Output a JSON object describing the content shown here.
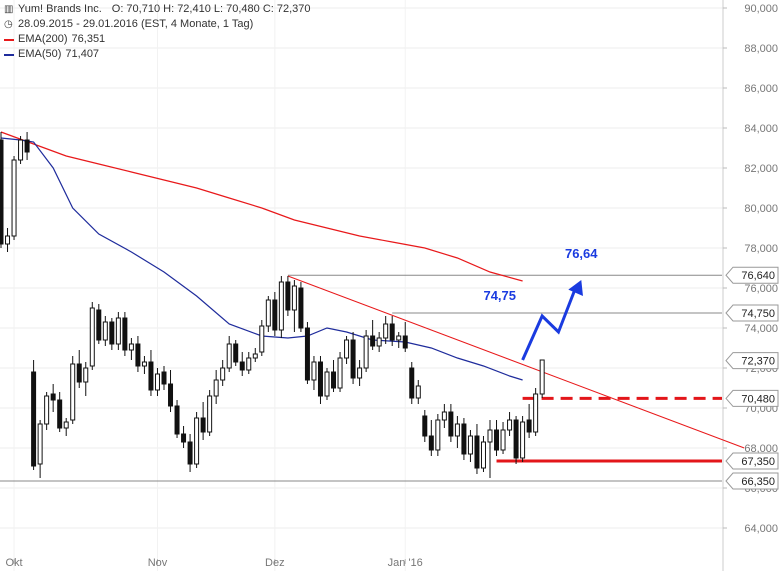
{
  "header": {
    "title": "Yum! Brands Inc.",
    "ohlc": "O: 70,710  H: 72,410  L: 70,480  C: 72,370",
    "period": "28.09.2015 - 29.01.2016 (EST, 4 Monate, 1 Tag)",
    "legend": [
      {
        "name": "EMA(200)",
        "value": "76,351",
        "color": "#e8191b"
      },
      {
        "name": "EMA(50)",
        "value": "71,407",
        "color": "#1f2c9c"
      }
    ]
  },
  "chart_data": {
    "type": "candlestick",
    "ylim": [
      63.2,
      90.0
    ],
    "y_ticks": [
      "90,000",
      "88,000",
      "86,000",
      "84,000",
      "82,000",
      "80,000",
      "78,000",
      "76,000",
      "74,000",
      "72,000",
      "70,000",
      "68,000",
      "66,000",
      "64,000"
    ],
    "y_tick_values": [
      90,
      88,
      86,
      84,
      82,
      80,
      78,
      76,
      74,
      72,
      70,
      68,
      66,
      64
    ],
    "x_ticks": [
      "Okt",
      "Nov",
      "Dez",
      "Jan '16"
    ],
    "x_tick_index": [
      2,
      24,
      42,
      62
    ],
    "n_bars": 86,
    "candles": [
      [
        83.4,
        83.8,
        78.0,
        78.2
      ],
      [
        78.2,
        79.0,
        77.8,
        78.6
      ],
      [
        78.6,
        82.6,
        78.4,
        82.4
      ],
      [
        82.4,
        83.6,
        82.2,
        83.4
      ],
      [
        83.4,
        83.8,
        82.4,
        82.8
      ],
      [
        71.8,
        72.4,
        66.9,
        67.1
      ],
      [
        67.2,
        69.4,
        66.5,
        69.2
      ],
      [
        69.2,
        70.8,
        68.9,
        70.6
      ],
      [
        70.7,
        71.2,
        69.8,
        70.4
      ],
      [
        70.4,
        70.8,
        68.8,
        69.0
      ],
      [
        69.0,
        69.5,
        68.6,
        69.3
      ],
      [
        69.4,
        72.6,
        69.2,
        72.2
      ],
      [
        72.2,
        72.9,
        71.0,
        71.3
      ],
      [
        71.3,
        72.3,
        70.6,
        72.0
      ],
      [
        72.1,
        75.3,
        71.9,
        75.0
      ],
      [
        74.9,
        75.2,
        73.2,
        73.4
      ],
      [
        73.4,
        74.6,
        73.1,
        74.3
      ],
      [
        74.3,
        74.5,
        72.9,
        73.2
      ],
      [
        73.2,
        74.8,
        72.9,
        74.5
      ],
      [
        74.5,
        74.8,
        72.6,
        72.9
      ],
      [
        72.9,
        73.5,
        72.4,
        73.2
      ],
      [
        73.2,
        73.6,
        71.8,
        72.1
      ],
      [
        72.1,
        72.6,
        71.7,
        72.3
      ],
      [
        72.3,
        72.9,
        70.6,
        70.9
      ],
      [
        70.9,
        72.0,
        70.6,
        71.7
      ],
      [
        71.8,
        72.1,
        70.9,
        71.2
      ],
      [
        71.2,
        71.9,
        69.8,
        70.1
      ],
      [
        70.1,
        70.4,
        68.5,
        68.7
      ],
      [
        68.7,
        69.1,
        68.0,
        68.3
      ],
      [
        68.3,
        68.7,
        66.8,
        67.2
      ],
      [
        67.2,
        69.8,
        67.0,
        69.5
      ],
      [
        69.5,
        70.3,
        68.4,
        68.8
      ],
      [
        68.8,
        70.9,
        68.6,
        70.6
      ],
      [
        70.6,
        71.9,
        70.2,
        71.4
      ],
      [
        71.4,
        72.4,
        71.1,
        72.0
      ],
      [
        72.0,
        73.6,
        71.8,
        73.2
      ],
      [
        73.2,
        73.4,
        72.1,
        72.3
      ],
      [
        72.3,
        72.8,
        71.6,
        71.9
      ],
      [
        71.9,
        72.8,
        71.7,
        72.5
      ],
      [
        72.5,
        73.0,
        72.3,
        72.7
      ],
      [
        72.8,
        74.4,
        72.6,
        74.1
      ],
      [
        74.1,
        75.6,
        73.8,
        75.4
      ],
      [
        75.4,
        75.8,
        73.6,
        73.9
      ],
      [
        73.9,
        76.6,
        73.5,
        76.3
      ],
      [
        76.3,
        76.6,
        74.6,
        74.9
      ],
      [
        74.9,
        76.4,
        73.8,
        76.1
      ],
      [
        76.0,
        76.3,
        73.8,
        74.0
      ],
      [
        74.0,
        74.3,
        71.2,
        71.4
      ],
      [
        71.4,
        72.6,
        70.9,
        72.3
      ],
      [
        72.3,
        72.6,
        70.2,
        70.6
      ],
      [
        70.6,
        72.0,
        70.4,
        71.8
      ],
      [
        71.8,
        72.4,
        70.8,
        71.0
      ],
      [
        71.0,
        72.8,
        70.8,
        72.5
      ],
      [
        72.5,
        73.6,
        72.2,
        73.4
      ],
      [
        73.4,
        73.8,
        71.2,
        71.5
      ],
      [
        71.5,
        72.4,
        71.1,
        72.0
      ],
      [
        72.0,
        73.9,
        71.8,
        73.6
      ],
      [
        73.6,
        74.4,
        72.9,
        73.1
      ],
      [
        73.1,
        73.8,
        72.8,
        73.5
      ],
      [
        73.5,
        74.6,
        73.2,
        74.2
      ],
      [
        74.2,
        74.6,
        73.1,
        73.4
      ],
      [
        73.4,
        73.8,
        73.0,
        73.6
      ],
      [
        73.6,
        74.3,
        72.8,
        73.0
      ],
      [
        72.0,
        72.3,
        70.2,
        70.5
      ],
      [
        70.5,
        71.4,
        70.2,
        71.1
      ],
      [
        69.6,
        69.9,
        68.3,
        68.6
      ],
      [
        68.6,
        69.4,
        67.6,
        67.9
      ],
      [
        67.9,
        69.7,
        67.6,
        69.4
      ],
      [
        69.4,
        70.2,
        69.0,
        69.8
      ],
      [
        69.8,
        70.2,
        68.3,
        68.6
      ],
      [
        68.6,
        69.6,
        68.0,
        69.2
      ],
      [
        69.2,
        69.5,
        67.4,
        67.7
      ],
      [
        67.7,
        68.9,
        67.3,
        68.6
      ],
      [
        68.6,
        69.2,
        66.7,
        67.0
      ],
      [
        67.0,
        68.6,
        66.8,
        68.3
      ],
      [
        68.3,
        69.4,
        66.5,
        68.9
      ],
      [
        68.9,
        69.4,
        67.6,
        67.9
      ],
      [
        67.9,
        69.3,
        67.7,
        68.9
      ],
      [
        68.9,
        69.8,
        68.6,
        69.4
      ],
      [
        69.4,
        69.6,
        67.2,
        67.5
      ],
      [
        67.5,
        69.6,
        67.3,
        69.3
      ],
      [
        69.4,
        70.2,
        68.5,
        68.8
      ],
      [
        68.8,
        71.0,
        68.6,
        70.7
      ],
      [
        70.7,
        72.4,
        70.5,
        72.4
      ]
    ],
    "ema200": [
      [
        0,
        83.8
      ],
      [
        5,
        83.2
      ],
      [
        10,
        82.6
      ],
      [
        15,
        82.2
      ],
      [
        20,
        81.8
      ],
      [
        25,
        81.4
      ],
      [
        30,
        81.0
      ],
      [
        35,
        80.5
      ],
      [
        40,
        80.0
      ],
      [
        45,
        79.4
      ],
      [
        50,
        79.0
      ],
      [
        55,
        78.6
      ],
      [
        60,
        78.3
      ],
      [
        65,
        78.0
      ],
      [
        70,
        77.5
      ],
      [
        75,
        76.8
      ],
      [
        80,
        76.35
      ]
    ],
    "ema50": [
      [
        0,
        83.5
      ],
      [
        3,
        83.4
      ],
      [
        5,
        83.3
      ],
      [
        8,
        82.0
      ],
      [
        11,
        80.0
      ],
      [
        15,
        78.7
      ],
      [
        20,
        77.8
      ],
      [
        25,
        76.8
      ],
      [
        30,
        75.6
      ],
      [
        35,
        74.2
      ],
      [
        40,
        73.6
      ],
      [
        44,
        73.5
      ],
      [
        47,
        73.6
      ],
      [
        50,
        74.0
      ],
      [
        53,
        73.8
      ],
      [
        57,
        73.4
      ],
      [
        62,
        73.3
      ],
      [
        66,
        73.0
      ],
      [
        70,
        72.5
      ],
      [
        74,
        72.1
      ],
      [
        78,
        71.6
      ],
      [
        80,
        71.4
      ]
    ],
    "reference_lines": [
      {
        "label": "76,640",
        "value": 76.64,
        "from": 44,
        "color": "#888888",
        "style": "solid",
        "width": 1
      },
      {
        "label": "74,750",
        "value": 74.75,
        "from": 60,
        "color": "#888888",
        "style": "solid",
        "width": 1
      },
      {
        "label": "70,480",
        "value": 70.48,
        "from": 80,
        "color": "#e3161a",
        "style": "dashed",
        "width": 3
      },
      {
        "label": "67,350",
        "value": 67.35,
        "from": 76,
        "color": "#e3161a",
        "style": "solid",
        "width": 3
      },
      {
        "label": "66,350",
        "value": 66.35,
        "from": -2,
        "color": "#888888",
        "style": "solid",
        "width": 1
      }
    ],
    "trendline": [
      [
        44,
        76.6
      ],
      [
        114,
        68.0
      ]
    ],
    "last_close": {
      "label": "72,370",
      "value": 72.37
    },
    "projection": {
      "points": [
        [
          80,
          72.4
        ],
        [
          83,
          74.6
        ],
        [
          85.5,
          73.8
        ],
        [
          89,
          76.4
        ]
      ],
      "annotations": [
        {
          "text": "74,75",
          "at": [
            74,
            75.4
          ]
        },
        {
          "text": "76,64",
          "at": [
            86.5,
            77.5
          ]
        }
      ],
      "color": "#1a3be0"
    }
  }
}
